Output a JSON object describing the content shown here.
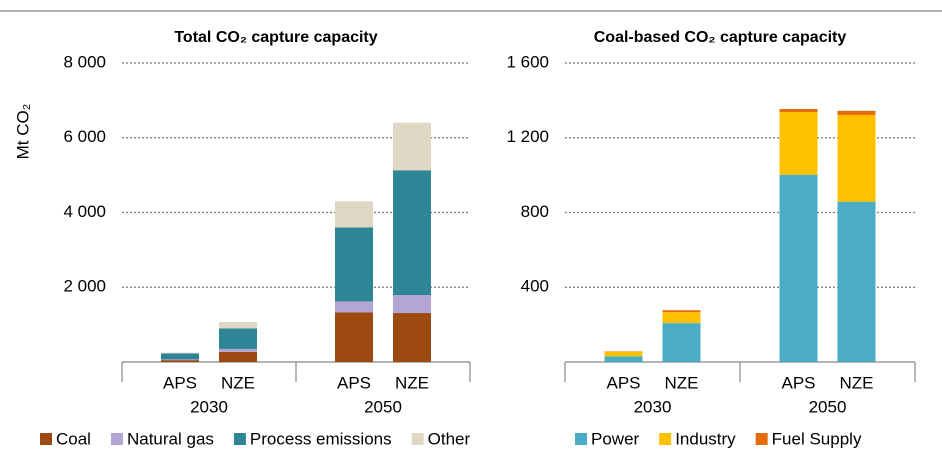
{
  "chart_data": [
    {
      "type": "bar",
      "stacked": true,
      "title": "Total CO₂ capture capacity",
      "ylabel": "Mt CO₂",
      "categories": [
        "APS",
        "NZE",
        "APS",
        "NZE"
      ],
      "groups": [
        "2030",
        "2050"
      ],
      "ylim": [
        0,
        8000
      ],
      "yticks": [
        {
          "value": 2000,
          "label": "2 000"
        },
        {
          "value": 4000,
          "label": "4 000"
        },
        {
          "value": 6000,
          "label": "6 000"
        },
        {
          "value": 8000,
          "label": "8 000"
        }
      ],
      "grid": true,
      "legend": "bottom",
      "series": [
        {
          "name": "Coal",
          "color": "#9c4a12",
          "values": [
            50,
            270,
            1330,
            1310
          ]
        },
        {
          "name": "Natural gas",
          "color": "#b3a6d4",
          "values": [
            20,
            80,
            290,
            480
          ]
        },
        {
          "name": "Process emissions",
          "color": "#2e8595",
          "values": [
            160,
            550,
            1980,
            3340
          ]
        },
        {
          "name": "Other",
          "color": "#ddd7c3",
          "values": [
            20,
            170,
            700,
            1270
          ]
        }
      ]
    },
    {
      "type": "bar",
      "stacked": true,
      "title": "Coal-based CO₂ capture capacity",
      "categories": [
        "APS",
        "NZE",
        "APS",
        "NZE"
      ],
      "groups": [
        "2030",
        "2050"
      ],
      "ylim": [
        0,
        1600
      ],
      "yticks": [
        400,
        800,
        {
          "value": 1200,
          "label": "1 200"
        },
        {
          "value": 1600,
          "label": "1 600"
        }
      ],
      "grid": true,
      "legend": "bottom",
      "series": [
        {
          "name": "Power",
          "color": "#4bacc6",
          "values": [
            30,
            208,
            1002,
            858
          ]
        },
        {
          "name": "Industry",
          "color": "#ffc000",
          "values": [
            25,
            59,
            336,
            464
          ]
        },
        {
          "name": "Fuel Supply",
          "color": "#e46c0a",
          "values": [
            2,
            10,
            16,
            22
          ]
        }
      ]
    }
  ]
}
